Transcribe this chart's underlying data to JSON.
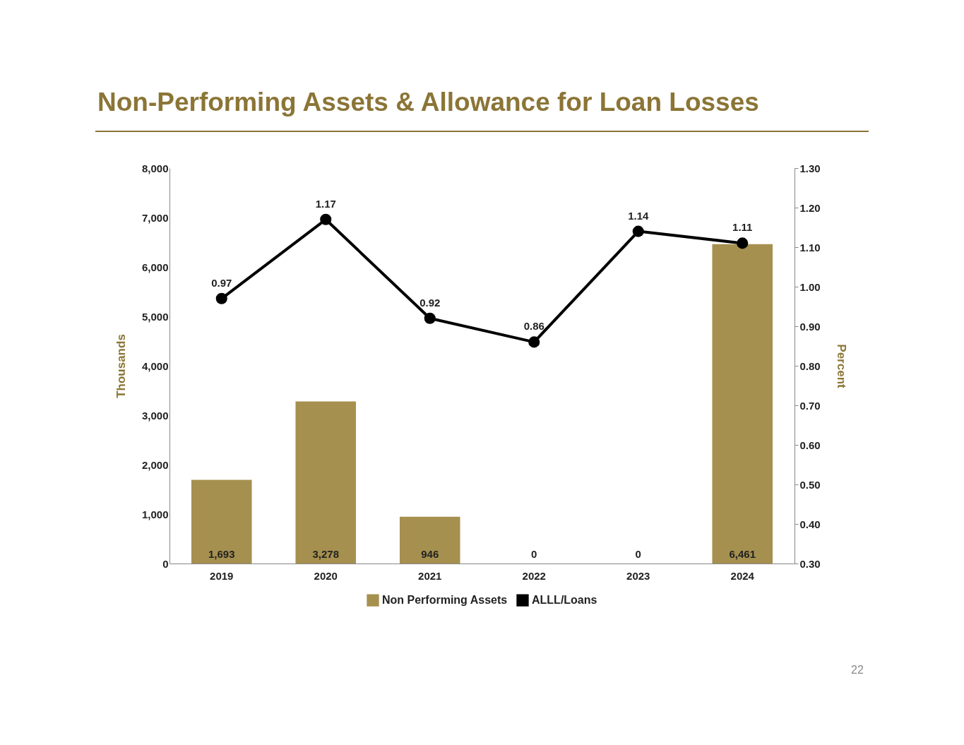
{
  "chart_data": {
    "type": "bar",
    "title": "Non-Performing Assets & Allowance for Loan Losses",
    "ylabel": "Thousands",
    "y2label": "Percent",
    "categories": [
      "2019",
      "2020",
      "2021",
      "2022",
      "2023",
      "2024"
    ],
    "series": [
      {
        "name": "Non Performing Assets",
        "color": "#a6904f",
        "values": [
          1693,
          3278,
          946,
          0,
          0,
          6461
        ],
        "value_labels": [
          "1,693",
          "3,278",
          "946",
          "0",
          "0",
          "6,461"
        ]
      },
      {
        "name": "ALLL/Loans",
        "type": "line",
        "axis": "y2",
        "color": "#000000",
        "marker": "circle",
        "values": [
          0.97,
          1.17,
          0.92,
          0.86,
          1.14,
          1.11
        ],
        "value_labels": [
          "0.97",
          "1.17",
          "0.92",
          "0.86",
          "1.14",
          "1.11"
        ]
      }
    ],
    "ylim": [
      0,
      8000
    ],
    "yticks": [
      0,
      {
        "value": 1000,
        "label": "1,000"
      },
      {
        "value": 2000,
        "label": "2,000"
      },
      {
        "value": 3000,
        "label": "3,000"
      },
      {
        "value": 4000,
        "label": "4,000"
      },
      {
        "value": 5000,
        "label": "5,000"
      },
      {
        "value": 6000,
        "label": "6,000"
      },
      {
        "value": 7000,
        "label": "7,000"
      },
      {
        "value": 8000,
        "label": "8,000"
      }
    ],
    "y2lim": [
      0.3,
      1.3
    ],
    "y2ticks": [
      {
        "value": 0.3,
        "label": "0.30"
      },
      {
        "value": 0.4,
        "label": "0.40"
      },
      {
        "value": 0.5,
        "label": "0.50"
      },
      {
        "value": 0.6,
        "label": "0.60"
      },
      {
        "value": 0.7,
        "label": "0.70"
      },
      {
        "value": 0.8,
        "label": "0.80"
      },
      {
        "value": 0.9,
        "label": "0.90"
      },
      {
        "value": 1.0,
        "label": "1.00"
      },
      {
        "value": 1.1,
        "label": "1.10"
      },
      {
        "value": 1.2,
        "label": "1.20"
      },
      {
        "value": 1.3,
        "label": "1.30"
      }
    ],
    "grid": false,
    "legend": "bottom",
    "annotations": [
      "22"
    ]
  }
}
